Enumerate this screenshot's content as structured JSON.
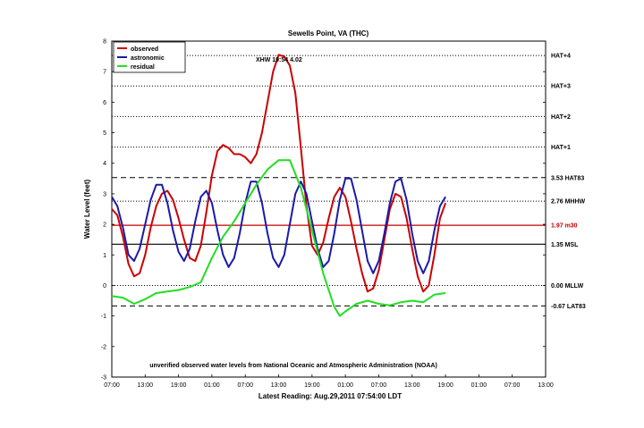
{
  "chart_data": {
    "type": "line",
    "title": "Sewells Point, VA (THC)",
    "ylabel": "Water Level (feet)",
    "xlabel": "Latest Reading: Aug.29,2011 07:54:00 LDT",
    "annotation_peak": "XHW 19:54 4.02",
    "source_note": "unverified observed water levels from National Oceanic and Atmospheric Administration (NOAA)",
    "ylim": [
      -3,
      8
    ],
    "xlim": [
      0,
      72
    ],
    "y_ticks": [
      -3,
      -2,
      -1,
      0,
      1,
      2,
      3,
      4,
      5,
      6,
      7,
      8
    ],
    "x_ticks": [
      {
        "x": 0,
        "label": "07:00"
      },
      {
        "x": 6,
        "label": "13:00"
      },
      {
        "x": 12,
        "label": "19:00"
      },
      {
        "x": 18,
        "label": "01:00"
      },
      {
        "x": 24,
        "label": "07:00"
      },
      {
        "x": 30,
        "label": "13:00"
      },
      {
        "x": 36,
        "label": "19:00"
      },
      {
        "x": 42,
        "label": "01:00"
      },
      {
        "x": 48,
        "label": "07:00"
      },
      {
        "x": 54,
        "label": "13:00"
      },
      {
        "x": 60,
        "label": "19:00"
      },
      {
        "x": 66,
        "label": "01:00"
      },
      {
        "x": 72,
        "label": "07:00"
      },
      {
        "x": 78,
        "label": "13:00"
      }
    ],
    "reference_lines": [
      {
        "value": 7.53,
        "label": "HAT+4",
        "style": "dotted",
        "color": "#000000"
      },
      {
        "value": 6.53,
        "label": "HAT+3",
        "style": "dotted",
        "color": "#000000"
      },
      {
        "value": 5.53,
        "label": "HAT+2",
        "style": "dotted",
        "color": "#000000"
      },
      {
        "value": 4.53,
        "label": "HAT+1",
        "style": "dotted",
        "color": "#000000"
      },
      {
        "value": 3.53,
        "label": "3.53 HAT83",
        "style": "dashed",
        "color": "#000000"
      },
      {
        "value": 2.76,
        "label": "2.76 MHHW",
        "style": "dotted",
        "color": "#000000"
      },
      {
        "value": 1.97,
        "label": "1.97 m30",
        "style": "solid",
        "color": "#c00000"
      },
      {
        "value": 1.35,
        "label": "1.35 MSL",
        "style": "solid",
        "color": "#000000"
      },
      {
        "value": 0.0,
        "label": "0.00 MLLW",
        "style": "dotted",
        "color": "#000000"
      },
      {
        "value": -0.67,
        "label": "-0.67 LAT83",
        "style": "dashed",
        "color": "#000000"
      }
    ],
    "legend": {
      "placement": "top-left"
    },
    "series": [
      {
        "name": "observed",
        "color": "#cc0000",
        "points": [
          [
            0,
            2.5
          ],
          [
            1,
            2.3
          ],
          [
            2,
            1.6
          ],
          [
            3,
            0.7
          ],
          [
            4,
            0.3
          ],
          [
            5,
            0.4
          ],
          [
            6,
            1.0
          ],
          [
            7,
            1.9
          ],
          [
            8,
            2.6
          ],
          [
            9,
            3.0
          ],
          [
            10,
            3.1
          ],
          [
            11,
            2.8
          ],
          [
            12,
            2.2
          ],
          [
            13,
            1.5
          ],
          [
            14,
            0.9
          ],
          [
            15,
            0.8
          ],
          [
            16,
            1.3
          ],
          [
            17,
            2.4
          ],
          [
            18,
            3.6
          ],
          [
            19,
            4.4
          ],
          [
            20,
            4.6
          ],
          [
            21,
            4.5
          ],
          [
            22,
            4.3
          ],
          [
            23,
            4.3
          ],
          [
            24,
            4.2
          ],
          [
            25,
            4.0
          ],
          [
            26,
            4.3
          ],
          [
            27,
            5.0
          ],
          [
            28,
            6.0
          ],
          [
            29,
            7.0
          ],
          [
            30,
            7.55
          ],
          [
            31,
            7.5
          ],
          [
            32,
            7.2
          ],
          [
            33,
            6.3
          ],
          [
            34,
            4.5
          ],
          [
            35,
            2.6
          ],
          [
            36,
            1.3
          ],
          [
            37,
            1.0
          ],
          [
            38,
            1.4
          ],
          [
            39,
            2.2
          ],
          [
            40,
            2.9
          ],
          [
            41,
            3.2
          ],
          [
            42,
            2.9
          ],
          [
            43,
            2.1
          ],
          [
            44,
            1.2
          ],
          [
            45,
            0.4
          ],
          [
            46,
            -0.2
          ],
          [
            47,
            -0.1
          ],
          [
            48,
            0.5
          ],
          [
            49,
            1.5
          ],
          [
            50,
            2.5
          ],
          [
            51,
            3.0
          ],
          [
            52,
            2.9
          ],
          [
            53,
            2.2
          ],
          [
            54,
            1.2
          ],
          [
            55,
            0.3
          ],
          [
            56,
            -0.2
          ],
          [
            57,
            0.0
          ],
          [
            58,
            1.0
          ],
          [
            59,
            2.2
          ],
          [
            60,
            2.7
          ]
        ]
      },
      {
        "name": "astronomic",
        "color": "#1a1aaa",
        "points": [
          [
            0,
            2.9
          ],
          [
            1,
            2.6
          ],
          [
            2,
            1.9
          ],
          [
            3,
            1.0
          ],
          [
            4,
            0.8
          ],
          [
            5,
            1.2
          ],
          [
            6,
            2.0
          ],
          [
            7,
            2.8
          ],
          [
            8,
            3.3
          ],
          [
            9,
            3.3
          ],
          [
            10,
            2.7
          ],
          [
            11,
            1.8
          ],
          [
            12,
            1.1
          ],
          [
            13,
            0.8
          ],
          [
            14,
            1.2
          ],
          [
            15,
            2.1
          ],
          [
            16,
            2.9
          ],
          [
            17,
            3.1
          ],
          [
            18,
            2.7
          ],
          [
            19,
            1.8
          ],
          [
            20,
            1.0
          ],
          [
            21,
            0.6
          ],
          [
            22,
            0.9
          ],
          [
            23,
            1.7
          ],
          [
            24,
            2.7
          ],
          [
            25,
            3.4
          ],
          [
            26,
            3.4
          ],
          [
            27,
            2.7
          ],
          [
            28,
            1.7
          ],
          [
            29,
            0.9
          ],
          [
            30,
            0.6
          ],
          [
            31,
            1.0
          ],
          [
            32,
            2.0
          ],
          [
            33,
            3.0
          ],
          [
            34,
            3.4
          ],
          [
            35,
            3.0
          ],
          [
            36,
            2.1
          ],
          [
            37,
            1.2
          ],
          [
            38,
            0.6
          ],
          [
            39,
            0.8
          ],
          [
            40,
            1.7
          ],
          [
            41,
            2.8
          ],
          [
            42,
            3.5
          ],
          [
            43,
            3.5
          ],
          [
            44,
            2.8
          ],
          [
            45,
            1.8
          ],
          [
            46,
            0.8
          ],
          [
            47,
            0.4
          ],
          [
            48,
            0.8
          ],
          [
            49,
            1.7
          ],
          [
            50,
            2.7
          ],
          [
            51,
            3.4
          ],
          [
            52,
            3.5
          ],
          [
            53,
            2.8
          ],
          [
            54,
            1.7
          ],
          [
            55,
            0.8
          ],
          [
            56,
            0.4
          ],
          [
            57,
            0.8
          ],
          [
            58,
            1.8
          ],
          [
            59,
            2.6
          ],
          [
            60,
            2.9
          ]
        ]
      },
      {
        "name": "residual",
        "color": "#22dd22",
        "points": [
          [
            0,
            -0.35
          ],
          [
            2,
            -0.4
          ],
          [
            4,
            -0.6
          ],
          [
            6,
            -0.45
          ],
          [
            8,
            -0.25
          ],
          [
            10,
            -0.2
          ],
          [
            12,
            -0.15
          ],
          [
            14,
            -0.05
          ],
          [
            16,
            0.1
          ],
          [
            18,
            0.9
          ],
          [
            20,
            1.6
          ],
          [
            22,
            2.1
          ],
          [
            24,
            2.7
          ],
          [
            26,
            3.3
          ],
          [
            28,
            3.8
          ],
          [
            30,
            4.1
          ],
          [
            32,
            4.1
          ],
          [
            34,
            3.2
          ],
          [
            36,
            1.8
          ],
          [
            38,
            0.4
          ],
          [
            40,
            -0.7
          ],
          [
            41,
            -1.0
          ],
          [
            42,
            -0.85
          ],
          [
            44,
            -0.6
          ],
          [
            46,
            -0.5
          ],
          [
            48,
            -0.6
          ],
          [
            50,
            -0.65
          ],
          [
            52,
            -0.55
          ],
          [
            54,
            -0.5
          ],
          [
            56,
            -0.55
          ],
          [
            58,
            -0.3
          ],
          [
            60,
            -0.25
          ]
        ]
      }
    ]
  }
}
